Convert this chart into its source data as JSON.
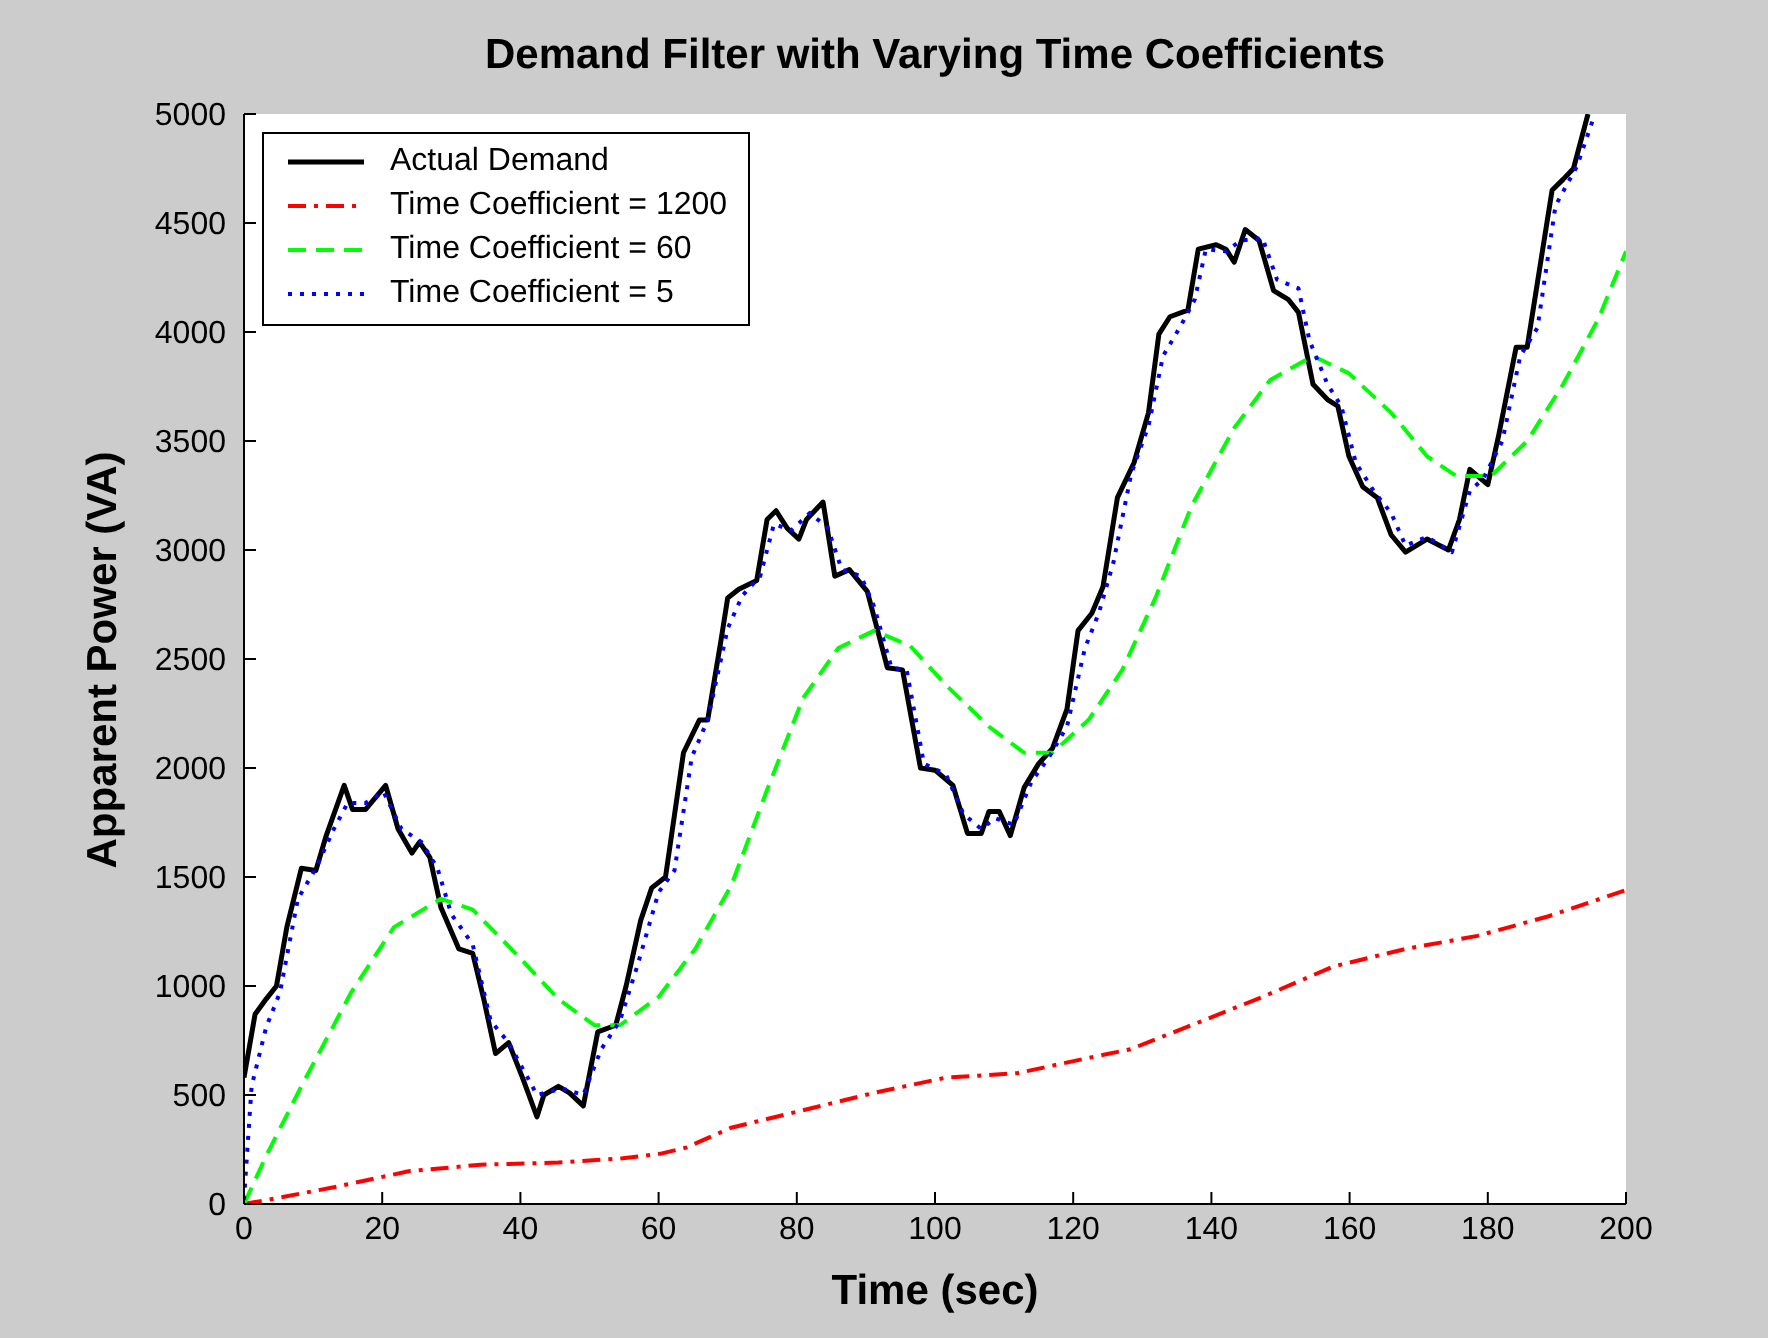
{
  "chart_data": {
    "type": "line",
    "title": "Demand Filter with Varying Time Coefficients",
    "xlabel": "Time (sec)",
    "ylabel": "Apparent Power (VA)",
    "xlim": [
      0,
      200
    ],
    "xticks": [
      0,
      20,
      40,
      60,
      80,
      100,
      120,
      140,
      160,
      180,
      200
    ],
    "ylim": [
      0,
      5000
    ],
    "yticks": [
      0,
      500,
      1000,
      1500,
      2000,
      2500,
      3000,
      3500,
      4000,
      4500,
      5000
    ],
    "legend": "top left",
    "series": [
      {
        "name": "Actual Demand",
        "color": "#000000",
        "line_style": "solid",
        "x": [
          0,
          1.6,
          3.2,
          4.7,
          6.2,
          8.3,
          10.4,
          11.9,
          14.5,
          15.7,
          17.6,
          20.5,
          22.3,
          24.3,
          25.4,
          26.9,
          28.5,
          31.1,
          33.1,
          34.7,
          36.4,
          38.3,
          40.3,
          42.4,
          43.4,
          45.5,
          47.1,
          49.1,
          51.2,
          53.8,
          55.3,
          57.4,
          59,
          61,
          63.6,
          65.9,
          67.1,
          69,
          70,
          71.6,
          74.2,
          75.7,
          77,
          78.6,
          80.3,
          81.4,
          83.8,
          85.5,
          87.6,
          90.2,
          91.7,
          93.1,
          95.3,
          97.9,
          100,
          102.6,
          104.7,
          106.7,
          107.8,
          109.3,
          110.9,
          112.9,
          115,
          117,
          119.1,
          120.7,
          122.7,
          124.3,
          126.4,
          128.8,
          130.9,
          132.4,
          134,
          136.6,
          138.1,
          140.7,
          142.1,
          143.3,
          144.9,
          146.9,
          149,
          151.1,
          152.6,
          154.7,
          156.8,
          158.3,
          159.9,
          161.9,
          164,
          166,
          168.1,
          171.2,
          174.3,
          175.9,
          177.4,
          178.5,
          180,
          181.6,
          184.1,
          185.7,
          189.3,
          190.9,
          192.4,
          194.5
        ],
        "values": [
          580,
          870,
          940,
          1000,
          1270,
          1540,
          1530,
          1690,
          1920,
          1810,
          1810,
          1920,
          1720,
          1610,
          1660,
          1590,
          1360,
          1170,
          1150,
          940,
          690,
          740,
          580,
          400,
          500,
          540,
          510,
          450,
          790,
          820,
          1000,
          1300,
          1450,
          1500,
          2070,
          2220,
          2220,
          2580,
          2780,
          2820,
          2860,
          3140,
          3180,
          3100,
          3050,
          3140,
          3220,
          2880,
          2910,
          2810,
          2630,
          2460,
          2450,
          2000,
          1990,
          1920,
          1700,
          1700,
          1800,
          1800,
          1690,
          1910,
          2020,
          2090,
          2270,
          2630,
          2710,
          2830,
          3240,
          3400,
          3630,
          3990,
          4070,
          4100,
          4380,
          4400,
          4380,
          4320,
          4470,
          4420,
          4190,
          4150,
          4090,
          3760,
          3690,
          3660,
          3430,
          3290,
          3240,
          3070,
          2990,
          3050,
          3000,
          3140,
          3370,
          3340,
          3300,
          3530,
          3930,
          3930,
          4650,
          4700,
          4750,
          5000
        ]
      },
      {
        "name": "Time Coefficient = 1200",
        "color": "#ff0000",
        "line_style": "dashdot",
        "x": [
          0,
          3.6,
          13.5,
          23.8,
          34.2,
          45.5,
          54.8,
          60.2,
          64.1,
          70.5,
          80.9,
          91.2,
          101.6,
          111.9,
          122.2,
          128.3,
          137.1,
          147.4,
          157.7,
          168.1,
          178.5,
          188.8,
          200
        ],
        "values": [
          0,
          20,
          80,
          150,
          180,
          190,
          210,
          230,
          260,
          350,
          430,
          510,
          580,
          600,
          670,
          710,
          820,
          950,
          1090,
          1170,
          1230,
          1320,
          1440
        ]
      },
      {
        "name": "Time Coefficient = 60",
        "color": "#00ff00",
        "line_style": "dashed",
        "x": [
          0,
          3.2,
          8.3,
          15.5,
          21.7,
          28.5,
          33.1,
          39.3,
          45.5,
          50.7,
          54.4,
          60,
          65.3,
          70.5,
          75.7,
          80.9,
          86,
          91.2,
          96.4,
          101.6,
          107.8,
          112.9,
          117,
          122.2,
          127.1,
          131.9,
          137.1,
          143.3,
          148.5,
          154.7,
          159.9,
          166,
          171.2,
          175.4,
          180.5,
          185.7,
          190.9,
          196,
          200
        ],
        "values": [
          0,
          220,
          540,
          970,
          1270,
          1400,
          1350,
          1150,
          940,
          820,
          820,
          950,
          1170,
          1460,
          1900,
          2320,
          2550,
          2630,
          2560,
          2380,
          2190,
          2070,
          2070,
          2220,
          2450,
          2780,
          3200,
          3560,
          3780,
          3890,
          3810,
          3630,
          3430,
          3340,
          3340,
          3500,
          3760,
          4060,
          4370
        ]
      },
      {
        "name": "Time Coefficient = 5",
        "color": "#0000ff",
        "line_style": "dotted",
        "x": [
          0,
          1.1,
          3.2,
          5.2,
          7.8,
          10.4,
          13,
          15,
          17.6,
          20.2,
          22.8,
          25.7,
          28,
          30,
          33.1,
          35.7,
          38.3,
          42.4,
          46,
          49.1,
          51.7,
          54.4,
          56.9,
          60,
          62.3,
          64.8,
          67.1,
          70,
          72.1,
          74.7,
          76.7,
          79.2,
          81.9,
          84.5,
          86.5,
          89.3,
          91.2,
          93.7,
          95.9,
          98.4,
          101.6,
          104.1,
          106.7,
          108.7,
          111.4,
          114,
          116.5,
          119.1,
          121.7,
          123.7,
          125.8,
          128.4,
          130.9,
          133,
          135.6,
          137.6,
          139.2,
          142.1,
          144.3,
          147.4,
          149.5,
          152.6,
          154.2,
          156.8,
          158.8,
          160.9,
          163.5,
          166,
          168.1,
          171.2,
          174.8,
          177.4,
          179.4,
          182.1,
          184.7,
          187.2,
          189.8,
          192.9,
          195.5
        ],
        "values": [
          20,
          540,
          810,
          970,
          1400,
          1540,
          1720,
          1840,
          1840,
          1890,
          1720,
          1660,
          1540,
          1330,
          1190,
          840,
          740,
          500,
          530,
          500,
          710,
          840,
          1090,
          1430,
          1530,
          2050,
          2220,
          2640,
          2790,
          2880,
          3120,
          3090,
          3170,
          3100,
          2910,
          2880,
          2740,
          2460,
          2450,
          2020,
          1970,
          1790,
          1720,
          1770,
          1740,
          1940,
          2050,
          2190,
          2550,
          2710,
          2940,
          3350,
          3570,
          3890,
          4030,
          4150,
          4380,
          4370,
          4420,
          4430,
          4240,
          4200,
          3960,
          3760,
          3660,
          3400,
          3270,
          3170,
          3020,
          3060,
          2990,
          3270,
          3330,
          3500,
          3890,
          4020,
          4580,
          4760,
          5000
        ]
      }
    ]
  }
}
